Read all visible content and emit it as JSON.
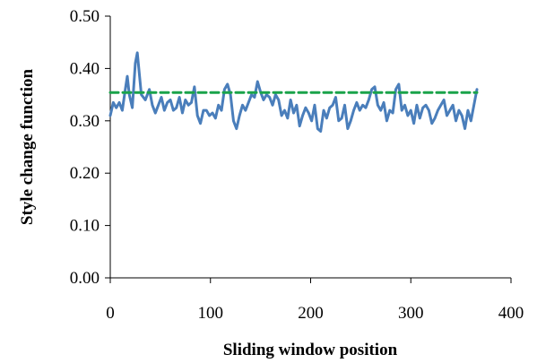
{
  "chart_data": {
    "type": "line",
    "title": "",
    "xlabel": "Sliding window position",
    "ylabel": "Style change function",
    "xlim": [
      0,
      400
    ],
    "ylim": [
      0.0,
      0.5
    ],
    "x_ticks": [
      "0",
      "100",
      "200",
      "300",
      "400"
    ],
    "y_ticks": [
      "0.00",
      "0.10",
      "0.20",
      "0.30",
      "0.40",
      "0.50"
    ],
    "grid": false,
    "legend": "none",
    "series": [
      {
        "type": "line",
        "color": "#4a7ebb",
        "x": [
          0,
          3,
          6,
          9,
          12,
          15,
          17,
          19,
          22,
          25,
          27,
          29,
          31,
          33,
          35,
          37,
          39,
          42,
          45,
          48,
          51,
          54,
          57,
          60,
          63,
          66,
          69,
          72,
          75,
          78,
          81,
          84,
          87,
          90,
          93,
          96,
          99,
          102,
          105,
          108,
          111,
          114,
          117,
          120,
          123,
          126,
          129,
          132,
          135,
          138,
          141,
          144,
          147,
          150,
          153,
          156,
          159,
          162,
          165,
          168,
          171,
          174,
          177,
          180,
          183,
          186,
          189,
          192,
          195,
          198,
          201,
          204,
          207,
          210,
          213,
          216,
          219,
          222,
          225,
          228,
          231,
          234,
          237,
          240,
          243,
          246,
          249,
          252,
          255,
          258,
          261,
          264,
          267,
          270,
          273,
          276,
          279,
          282,
          285,
          288,
          291,
          294,
          297,
          300,
          303,
          306,
          309,
          312,
          315,
          318,
          321,
          324,
          327,
          330,
          333,
          336,
          339,
          342,
          345,
          348,
          351,
          354,
          357,
          360,
          363,
          366
        ],
        "y": [
          0.31,
          0.335,
          0.325,
          0.335,
          0.32,
          0.36,
          0.385,
          0.35,
          0.325,
          0.41,
          0.43,
          0.39,
          0.35,
          0.345,
          0.34,
          0.35,
          0.36,
          0.33,
          0.315,
          0.33,
          0.345,
          0.32,
          0.335,
          0.34,
          0.32,
          0.325,
          0.345,
          0.315,
          0.34,
          0.33,
          0.335,
          0.365,
          0.31,
          0.295,
          0.32,
          0.32,
          0.31,
          0.315,
          0.305,
          0.33,
          0.32,
          0.36,
          0.37,
          0.35,
          0.3,
          0.285,
          0.31,
          0.33,
          0.32,
          0.335,
          0.35,
          0.345,
          0.375,
          0.355,
          0.34,
          0.35,
          0.345,
          0.33,
          0.35,
          0.34,
          0.31,
          0.32,
          0.305,
          0.34,
          0.315,
          0.33,
          0.29,
          0.31,
          0.325,
          0.315,
          0.3,
          0.33,
          0.285,
          0.28,
          0.32,
          0.305,
          0.325,
          0.33,
          0.345,
          0.3,
          0.305,
          0.33,
          0.285,
          0.3,
          0.32,
          0.335,
          0.32,
          0.33,
          0.325,
          0.34,
          0.36,
          0.365,
          0.33,
          0.32,
          0.335,
          0.3,
          0.32,
          0.315,
          0.36,
          0.37,
          0.32,
          0.33,
          0.31,
          0.32,
          0.295,
          0.33,
          0.305,
          0.325,
          0.33,
          0.32,
          0.295,
          0.305,
          0.32,
          0.33,
          0.34,
          0.31,
          0.32,
          0.33,
          0.3,
          0.32,
          0.31,
          0.285,
          0.32,
          0.3,
          0.33,
          0.36
        ]
      },
      {
        "type": "dashed-line",
        "color": "#1aa34a",
        "x": [
          0,
          366
        ],
        "y": [
          0.354,
          0.354
        ]
      }
    ]
  }
}
